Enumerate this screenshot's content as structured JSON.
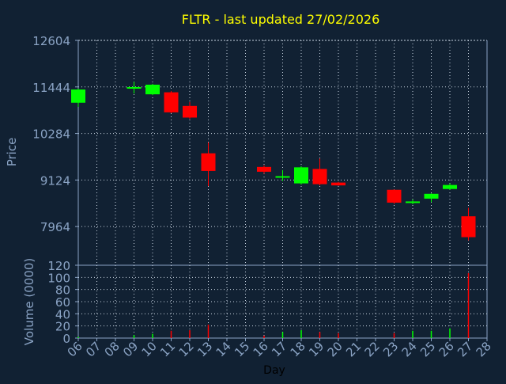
{
  "colors": {
    "background": "#112133",
    "axis": "#8aa3c4",
    "grid": "#c8d3e0",
    "title": "#ffff00",
    "up": "#00ff00",
    "down": "#ff0000"
  },
  "chart_data": [
    {
      "type": "candlestick",
      "title": "FLTR - last updated 27/02/2026",
      "ylabel": "Price",
      "ylim": [
        7000,
        12604
      ],
      "yticks": [
        12604,
        11444,
        10284,
        9124,
        7964
      ],
      "x": [
        "06",
        "07",
        "08",
        "09",
        "10",
        "11",
        "12",
        "13",
        "14",
        "15",
        "16",
        "17",
        "18",
        "19",
        "20",
        "21",
        "22",
        "23",
        "24",
        "25",
        "26",
        "27",
        "28"
      ],
      "grid": true,
      "candles": [
        {
          "day": "06",
          "open": 11050,
          "high": 11400,
          "low": 10950,
          "close": 11380
        },
        {
          "day": "09",
          "open": 11420,
          "high": 11570,
          "low": 11280,
          "close": 11440
        },
        {
          "day": "10",
          "open": 11260,
          "high": 11520,
          "low": 11240,
          "close": 11500
        },
        {
          "day": "11",
          "open": 11310,
          "high": 11340,
          "low": 10790,
          "close": 10810
        },
        {
          "day": "12",
          "open": 10970,
          "high": 11070,
          "low": 10650,
          "close": 10680
        },
        {
          "day": "13",
          "open": 9790,
          "high": 10060,
          "low": 8970,
          "close": 9350
        },
        {
          "day": "16",
          "open": 9450,
          "high": 9490,
          "low": 9280,
          "close": 9330
        },
        {
          "day": "17",
          "open": 9200,
          "high": 9370,
          "low": 9100,
          "close": 9220
        },
        {
          "day": "18",
          "open": 9040,
          "high": 9470,
          "low": 9010,
          "close": 9440
        },
        {
          "day": "19",
          "open": 9400,
          "high": 9660,
          "low": 8990,
          "close": 9020
        },
        {
          "day": "20",
          "open": 9060,
          "high": 9080,
          "low": 8980,
          "close": 8990
        },
        {
          "day": "23",
          "open": 8880,
          "high": 8890,
          "low": 8530,
          "close": 8560
        },
        {
          "day": "24",
          "open": 8570,
          "high": 8640,
          "low": 8520,
          "close": 8590
        },
        {
          "day": "25",
          "open": 8660,
          "high": 8790,
          "low": 8570,
          "close": 8780
        },
        {
          "day": "26",
          "open": 8900,
          "high": 9040,
          "low": 8880,
          "close": 9000
        },
        {
          "day": "27",
          "open": 8220,
          "high": 8430,
          "low": 7620,
          "close": 7700
        }
      ]
    },
    {
      "type": "bar",
      "xlabel": "Day",
      "ylabel": "Volume (0000)",
      "ylim": [
        0,
        120
      ],
      "yticks": [
        120,
        100,
        80,
        60,
        40,
        20,
        0
      ],
      "x": [
        "06",
        "07",
        "08",
        "09",
        "10",
        "11",
        "12",
        "13",
        "14",
        "15",
        "16",
        "17",
        "18",
        "19",
        "20",
        "21",
        "22",
        "23",
        "24",
        "25",
        "26",
        "27",
        "28"
      ],
      "grid": true,
      "bars": [
        {
          "day": "06",
          "value": 2,
          "direction": "up"
        },
        {
          "day": "09",
          "value": 5,
          "direction": "up"
        },
        {
          "day": "10",
          "value": 7,
          "direction": "up"
        },
        {
          "day": "11",
          "value": 12,
          "direction": "down"
        },
        {
          "day": "12",
          "value": 13,
          "direction": "down"
        },
        {
          "day": "13",
          "value": 22,
          "direction": "down"
        },
        {
          "day": "16",
          "value": 4,
          "direction": "down"
        },
        {
          "day": "17",
          "value": 10,
          "direction": "up"
        },
        {
          "day": "18",
          "value": 13,
          "direction": "up"
        },
        {
          "day": "19",
          "value": 10,
          "direction": "down"
        },
        {
          "day": "20",
          "value": 8,
          "direction": "down"
        },
        {
          "day": "23",
          "value": 8,
          "direction": "down"
        },
        {
          "day": "24",
          "value": 12,
          "direction": "up"
        },
        {
          "day": "25",
          "value": 12,
          "direction": "up"
        },
        {
          "day": "26",
          "value": 16,
          "direction": "up"
        },
        {
          "day": "27",
          "value": 107,
          "direction": "down"
        }
      ]
    }
  ]
}
